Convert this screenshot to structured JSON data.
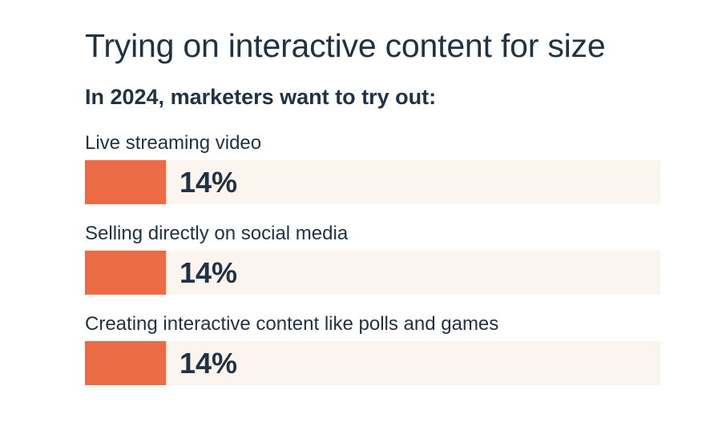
{
  "header": {
    "title": "Trying on interactive content for size",
    "subtitle": "In 2024, marketers want to try out:"
  },
  "colors": {
    "bar": "#ec6b47",
    "track": "#fcf5ef",
    "text": "#213343"
  },
  "chart_data": {
    "type": "bar",
    "orientation": "horizontal",
    "title": "Trying on interactive content for size",
    "subtitle": "In 2024, marketers want to try out:",
    "categories": [
      "Live streaming video",
      "Selling directly on social media",
      "Creating interactive content like polls and games"
    ],
    "values": [
      14,
      14,
      14
    ],
    "value_labels": [
      "14%",
      "14%",
      "14%"
    ],
    "xlim": [
      0,
      100
    ],
    "unit": "%",
    "grid": false
  }
}
